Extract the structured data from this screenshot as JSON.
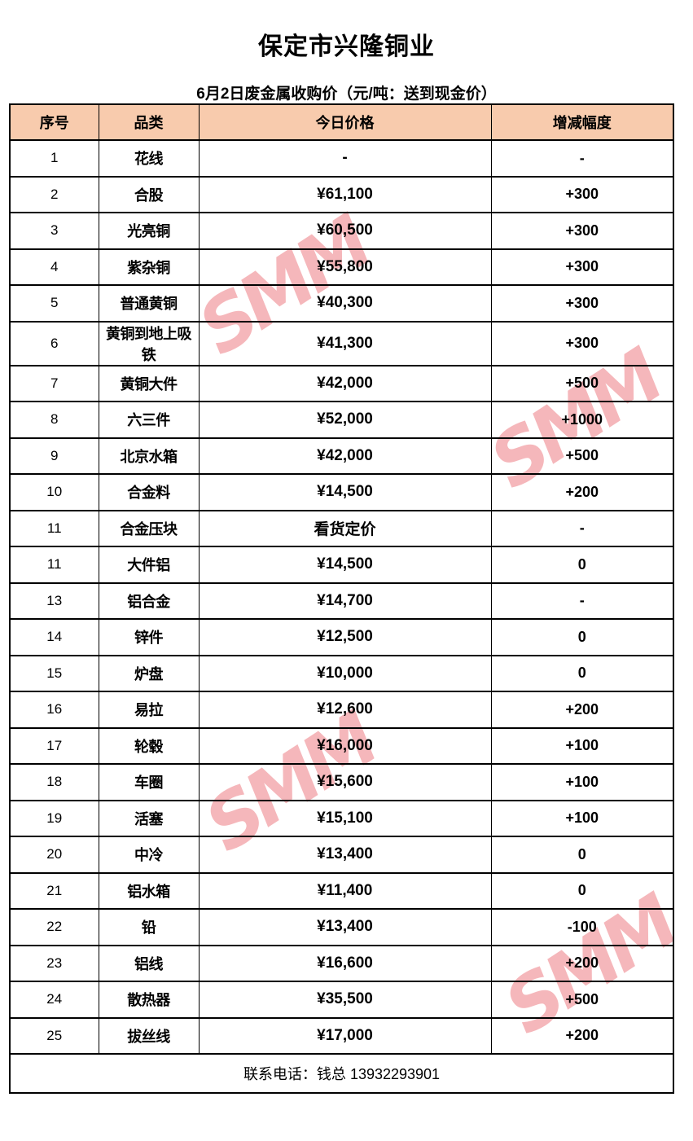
{
  "page": {
    "title": "保定市兴隆铜业",
    "subtitle": "6月2日废金属收购价（元/吨：送到现金价）"
  },
  "watermark": {
    "text": "SMM"
  },
  "colors": {
    "header_bg": "#F8CBAD",
    "border": "#000000",
    "watermark": "#E84E56"
  },
  "table": {
    "columns": [
      "序号",
      "品类",
      "今日价格",
      "增减幅度"
    ],
    "rows": [
      [
        "1",
        "花线",
        "-",
        "-"
      ],
      [
        "2",
        "合股",
        "¥61,100",
        "+300"
      ],
      [
        "3",
        "光亮铜",
        "¥60,500",
        "+300"
      ],
      [
        "4",
        "紫杂铜",
        "¥55,800",
        "+300"
      ],
      [
        "5",
        "普通黄铜",
        "¥40,300",
        "+300"
      ],
      [
        "6",
        "黄铜到地上吸铁",
        "¥41,300",
        "+300"
      ],
      [
        "7",
        "黄铜大件",
        "¥42,000",
        "+500"
      ],
      [
        "8",
        "六三件",
        "¥52,000",
        "+1000"
      ],
      [
        "9",
        "北京水箱",
        "¥42,000",
        "+500"
      ],
      [
        "10",
        "合金料",
        "¥14,500",
        "+200"
      ],
      [
        "11",
        "合金压块",
        "看货定价",
        "-"
      ],
      [
        "11",
        "大件铝",
        "¥14,500",
        "0"
      ],
      [
        "13",
        "铝合金",
        "¥14,700",
        "-"
      ],
      [
        "14",
        "锌件",
        "¥12,500",
        "0"
      ],
      [
        "15",
        "炉盘",
        "¥10,000",
        "0"
      ],
      [
        "16",
        "易拉",
        "¥12,600",
        "+200"
      ],
      [
        "17",
        "轮毂",
        "¥16,000",
        "+100"
      ],
      [
        "18",
        "车圈",
        "¥15,600",
        "+100"
      ],
      [
        "19",
        "活塞",
        "¥15,100",
        "+100"
      ],
      [
        "20",
        "中冷",
        "¥13,400",
        "0"
      ],
      [
        "21",
        "铝水箱",
        "¥11,400",
        "0"
      ],
      [
        "22",
        "铅",
        "¥13,400",
        "-100"
      ],
      [
        "23",
        "铝线",
        "¥16,600",
        "+200"
      ],
      [
        "24",
        "散热器",
        "¥35,500",
        "+500"
      ],
      [
        "25",
        "拔丝线",
        "¥17,000",
        "+200"
      ]
    ],
    "footer": "联系电话：钱总 13932293901"
  }
}
